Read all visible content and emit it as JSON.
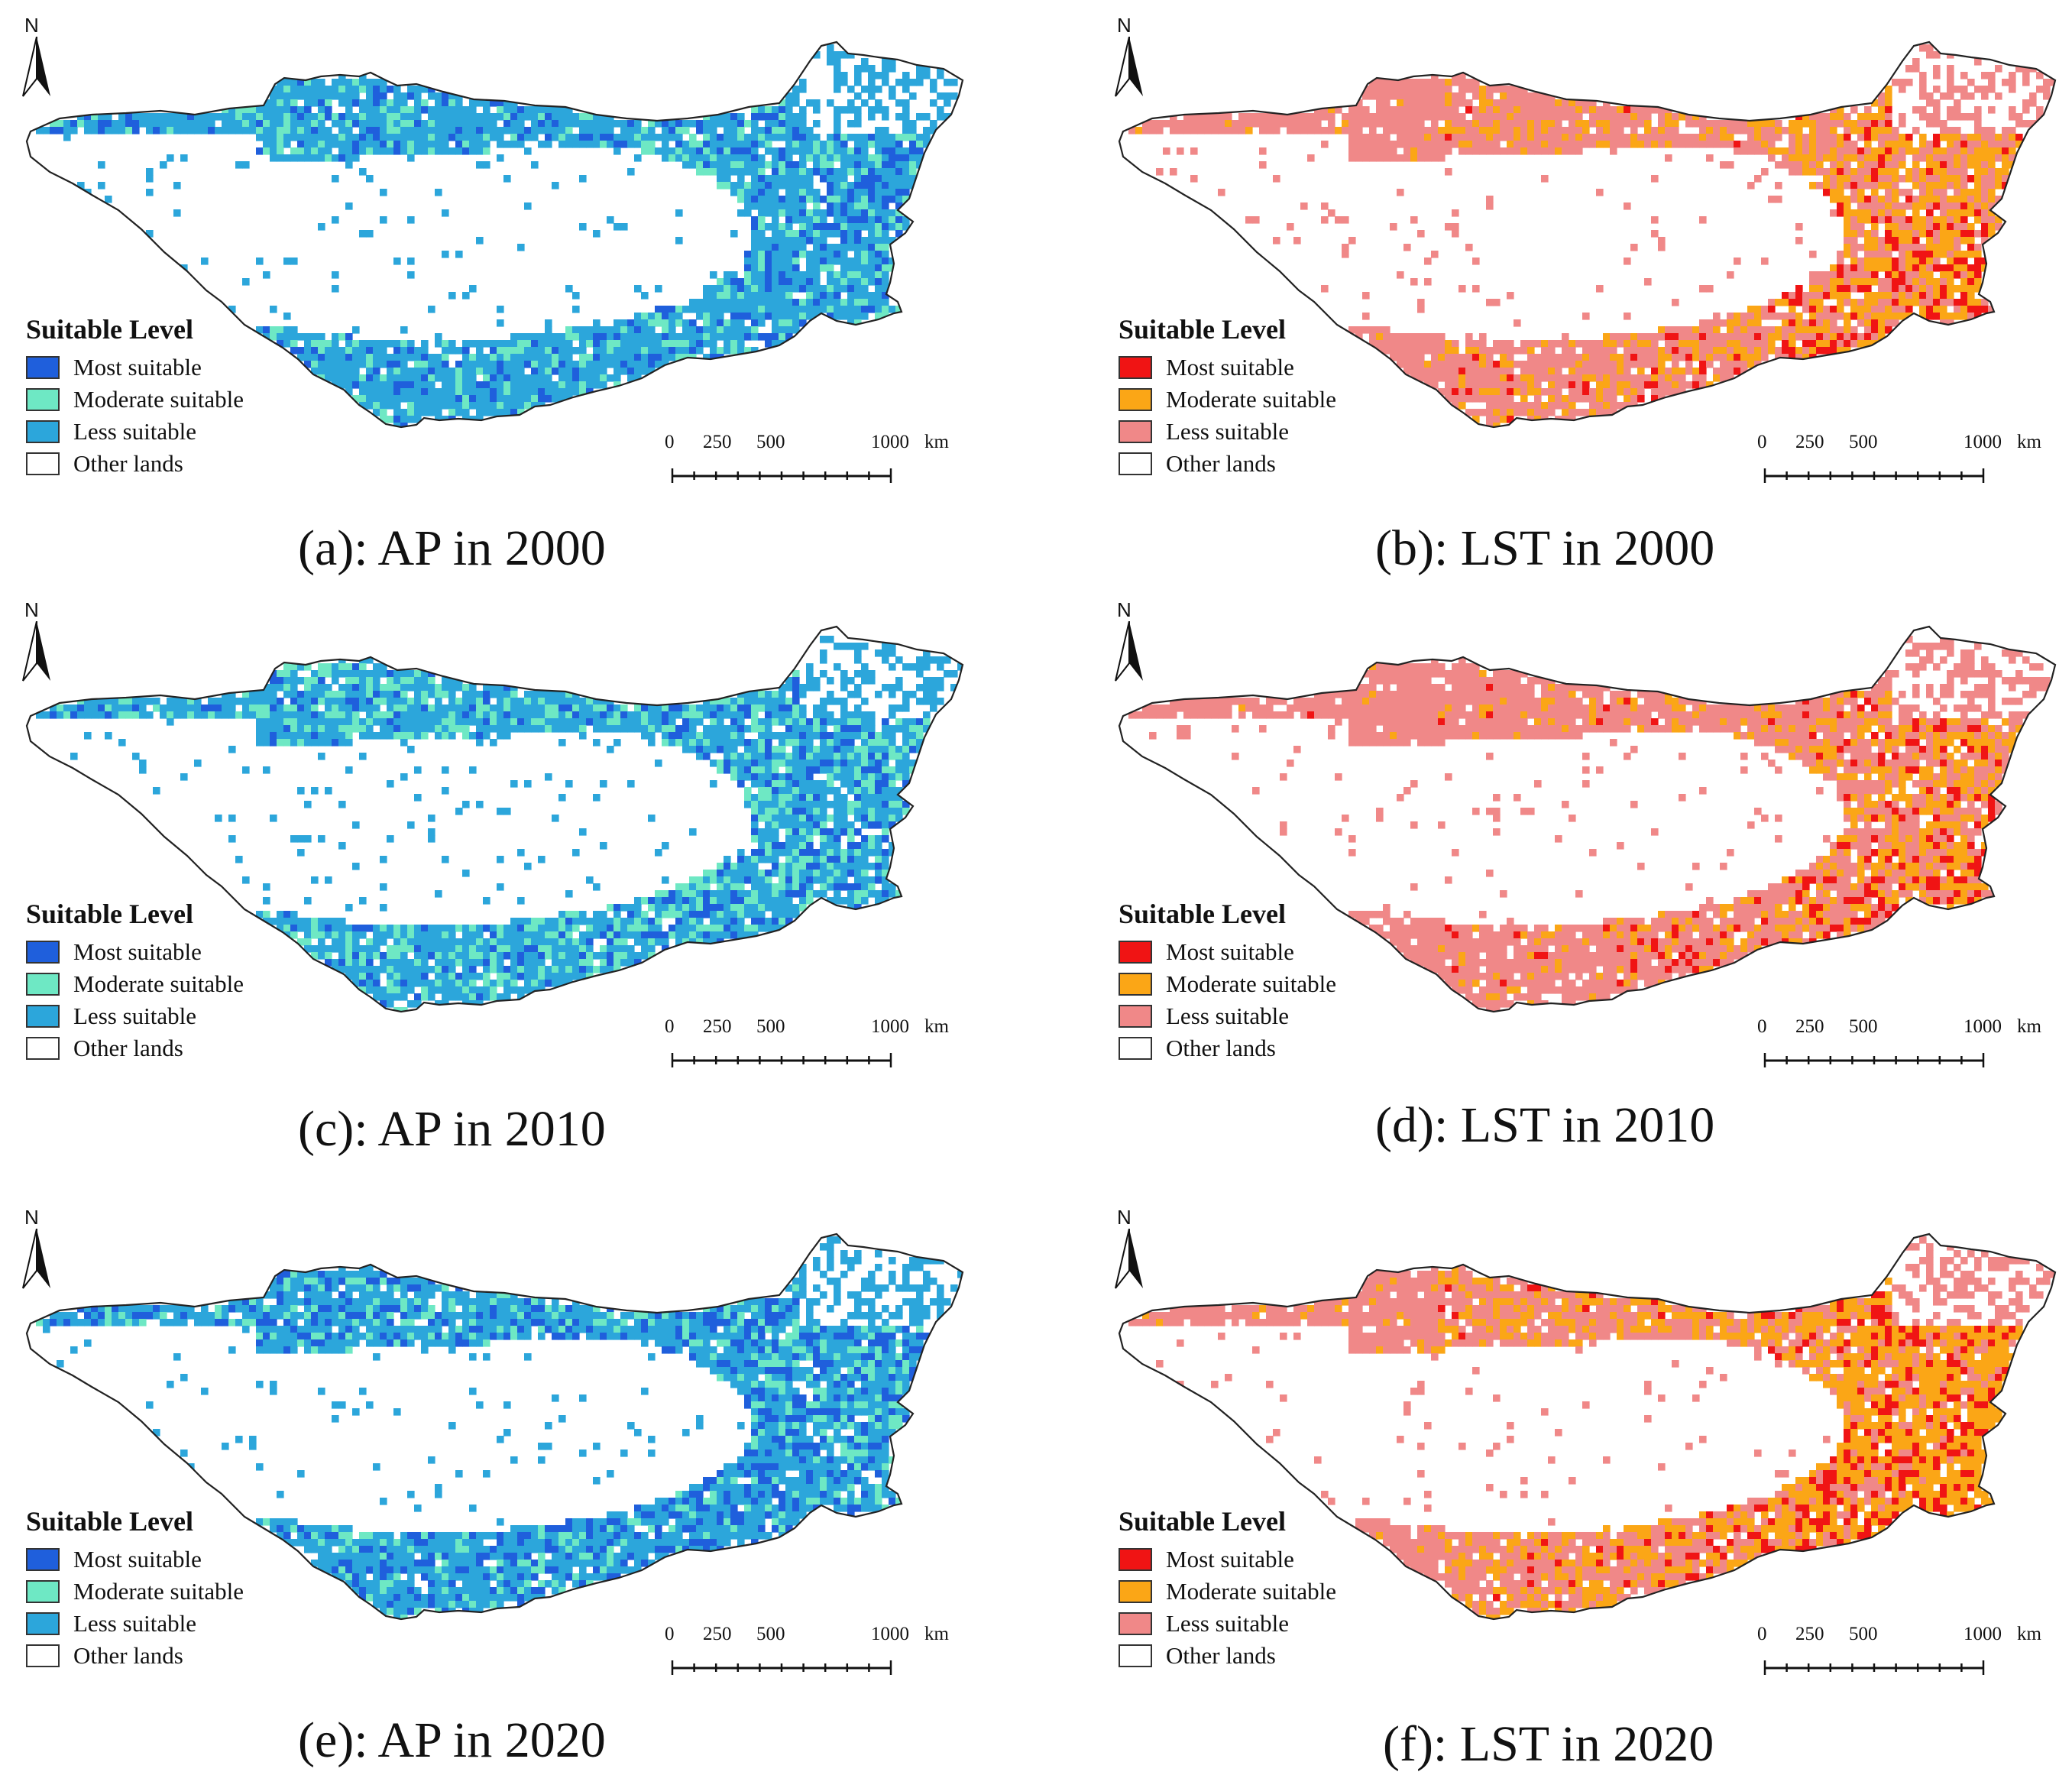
{
  "colors": {
    "ap": {
      "most": "#1f5fdc",
      "moderate": "#6ee8c4",
      "less": "#2ca6db",
      "other": "#ffffff"
    },
    "lst": {
      "most": "#f01414",
      "moderate": "#fba616",
      "less": "#f08888",
      "other": "#ffffff"
    }
  },
  "panels": [
    {
      "id": "a",
      "caption": "(a): AP in 2000",
      "scheme": "ap",
      "north": "N",
      "legend": {
        "title": "Suitable Level",
        "items": [
          "Most suitable",
          "Moderate suitable",
          "Less suitable",
          "Other lands"
        ]
      },
      "scale": {
        "labels": [
          "0",
          "250",
          "500",
          "1000"
        ],
        "unit": "km"
      }
    },
    {
      "id": "b",
      "caption": "(b): LST in 2000",
      "scheme": "lst",
      "north": "N",
      "legend": {
        "title": "Suitable Level",
        "items": [
          "Most suitable",
          "Moderate suitable",
          "Less suitable",
          "Other lands"
        ]
      },
      "scale": {
        "labels": [
          "0",
          "250",
          "500",
          "1000"
        ],
        "unit": "km"
      }
    },
    {
      "id": "c",
      "caption": "(c): AP in 2010",
      "scheme": "ap",
      "north": "N",
      "legend": {
        "title": "Suitable Level",
        "items": [
          "Most suitable",
          "Moderate suitable",
          "Less suitable",
          "Other lands"
        ]
      },
      "scale": {
        "labels": [
          "0",
          "250",
          "500",
          "1000"
        ],
        "unit": "km"
      }
    },
    {
      "id": "d",
      "caption": "(d): LST in 2010",
      "scheme": "lst",
      "north": "N",
      "legend": {
        "title": "Suitable Level",
        "items": [
          "Most suitable",
          "Moderate suitable",
          "Less suitable",
          "Other lands"
        ]
      },
      "scale": {
        "labels": [
          "0",
          "250",
          "500",
          "1000"
        ],
        "unit": "km"
      }
    },
    {
      "id": "e",
      "caption": "(e): AP in 2020",
      "scheme": "ap",
      "north": "N",
      "legend": {
        "title": "Suitable Level",
        "items": [
          "Most suitable",
          "Moderate suitable",
          "Less suitable",
          "Other lands"
        ]
      },
      "scale": {
        "labels": [
          "0",
          "250",
          "500",
          "1000"
        ],
        "unit": "km"
      }
    },
    {
      "id": "f",
      "caption": "(f): LST in 2020",
      "scheme": "lst",
      "north": "N",
      "legend": {
        "title": "Suitable Level",
        "items": [
          "Most suitable",
          "Moderate suitable",
          "Less suitable",
          "Other lands"
        ]
      },
      "scale": {
        "labels": [
          "0",
          "250",
          "500",
          "1000"
        ],
        "unit": "km"
      }
    }
  ]
}
